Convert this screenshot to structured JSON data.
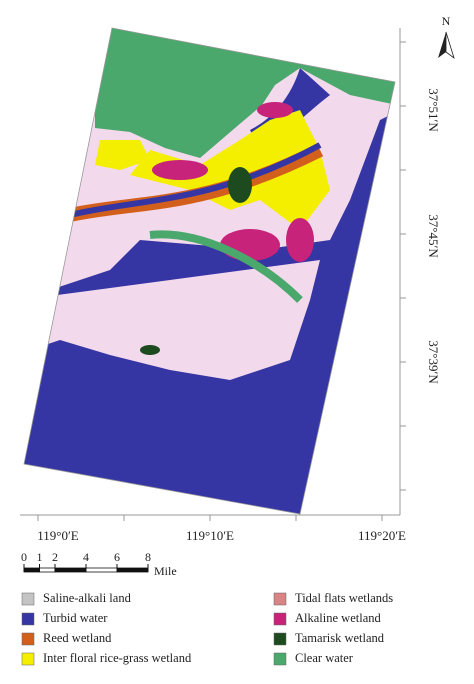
{
  "map": {
    "north": "N",
    "longitude_labels": [
      "119°0′E",
      "119°10′E",
      "119°20′E"
    ],
    "latitude_labels": [
      "37°51′N",
      "37°45′N",
      "37°39′N"
    ],
    "scale": {
      "ticks": [
        0,
        1,
        2,
        4,
        6,
        8
      ],
      "unit": "Mile"
    },
    "legend": [
      {
        "label": "Saline-alkali land",
        "color": "#c4c4c4"
      },
      {
        "label": "Turbid water",
        "color": "#3535a3"
      },
      {
        "label": "Reed wetland",
        "color": "#d2601c"
      },
      {
        "label": "Inter floral rice-grass wetland",
        "color": "#f4ee00"
      },
      {
        "label": "Tidal flats wetlands",
        "color": "#d98484"
      },
      {
        "label": "Alkaline wetland",
        "color": "#c7237b"
      },
      {
        "label": "Tamarisk wetland",
        "color": "#1d4a1f"
      },
      {
        "label": "Clear water",
        "color": "#4ba86c"
      }
    ]
  }
}
